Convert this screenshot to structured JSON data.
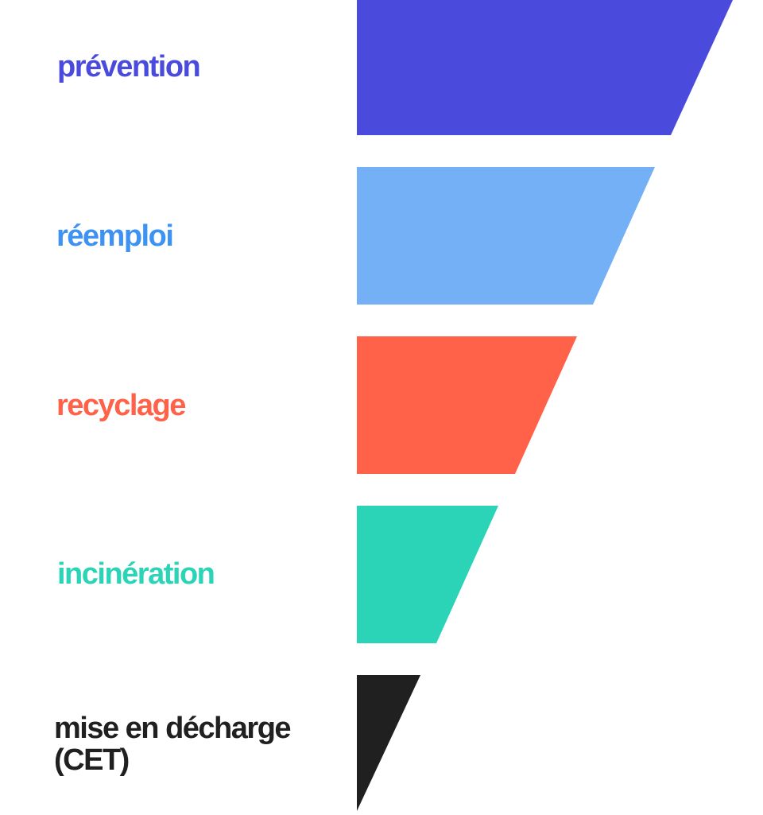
{
  "levels": [
    {
      "label": [
        "prévention"
      ]
    },
    {
      "label": [
        "réemploi"
      ]
    },
    {
      "label": [
        "recyclage"
      ]
    },
    {
      "label": [
        "incinération"
      ]
    },
    {
      "label": [
        "mise en décharge",
        "(CET)"
      ]
    }
  ]
}
